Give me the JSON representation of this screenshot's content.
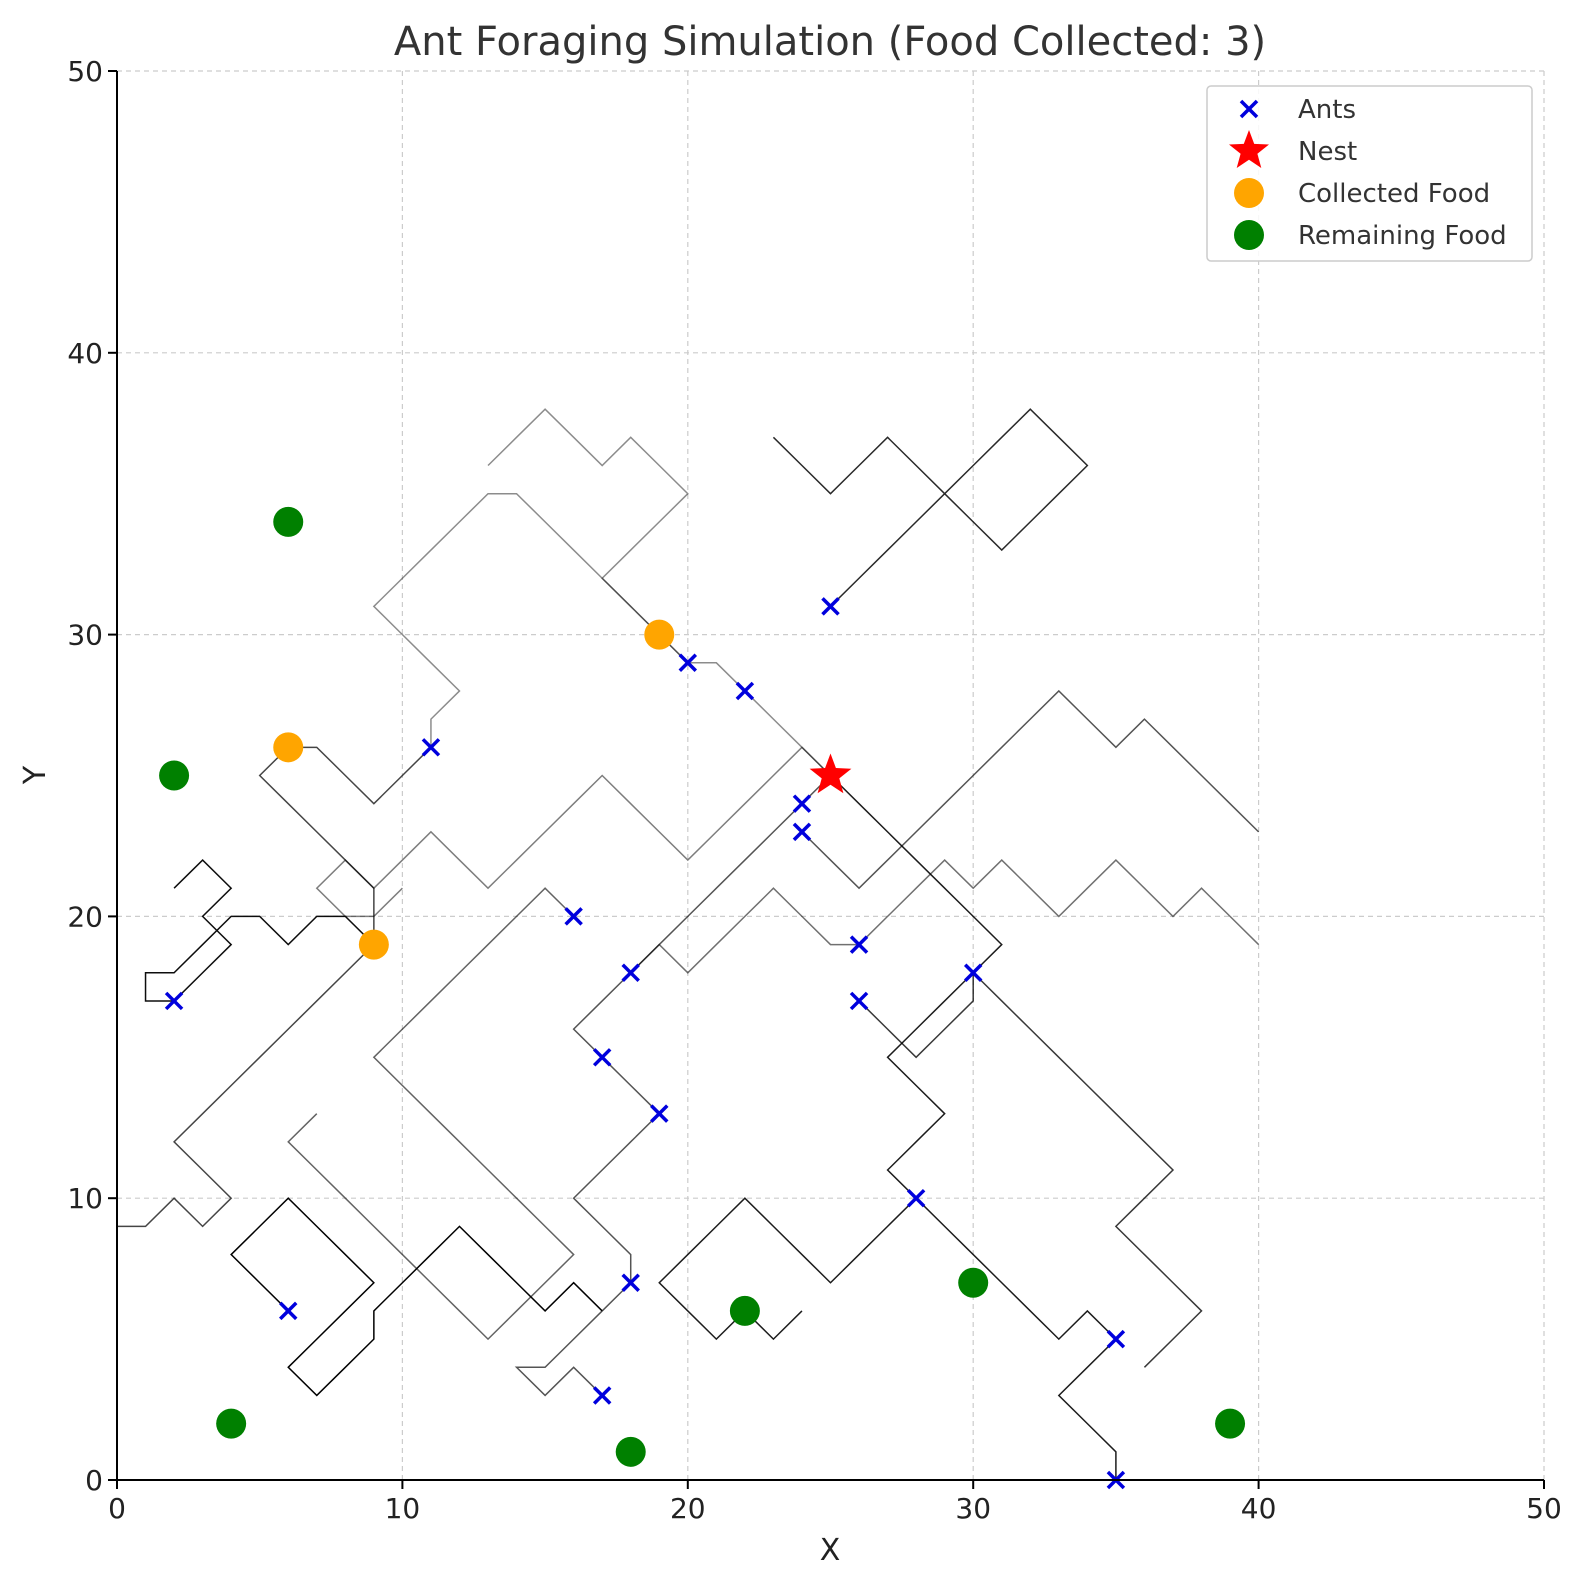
{
  "chart_data": {
    "type": "scatter",
    "title": "Ant Foraging Simulation (Food Collected: 3)",
    "xlabel": "X",
    "ylabel": "Y",
    "xlim": [
      0,
      50
    ],
    "ylim": [
      0,
      50
    ],
    "xticks": [
      "0",
      "10",
      "20",
      "30",
      "40",
      "50"
    ],
    "yticks": [
      "0",
      "10",
      "20",
      "30",
      "40",
      "50"
    ],
    "grid": true,
    "legend_position": "top-right",
    "colors": {
      "ants": "#0000dd",
      "nest": "#ff0000",
      "collected_food": "#ffa500",
      "remaining_food": "#008000",
      "trails": "#000000"
    },
    "series": [
      {
        "name": "Ants",
        "marker": "x",
        "points": [
          [
            2,
            17
          ],
          [
            6,
            6
          ],
          [
            11,
            26
          ],
          [
            16,
            20
          ],
          [
            17,
            15
          ],
          [
            17,
            3
          ],
          [
            18,
            18
          ],
          [
            18,
            7
          ],
          [
            19,
            13
          ],
          [
            20,
            29
          ],
          [
            22,
            28
          ],
          [
            24,
            24
          ],
          [
            24,
            23
          ],
          [
            25,
            31
          ],
          [
            26,
            19
          ],
          [
            26,
            17
          ],
          [
            28,
            10
          ],
          [
            30,
            18
          ],
          [
            35,
            5
          ],
          [
            35,
            0
          ]
        ]
      },
      {
        "name": "Nest",
        "marker": "star",
        "points": [
          [
            25,
            25
          ]
        ]
      },
      {
        "name": "Collected Food",
        "marker": "circle",
        "points": [
          [
            19,
            30
          ],
          [
            6,
            26
          ],
          [
            9,
            19
          ]
        ]
      },
      {
        "name": "Remaining Food",
        "marker": "circle",
        "points": [
          [
            6,
            34
          ],
          [
            2,
            25
          ],
          [
            4,
            2
          ],
          [
            18,
            1
          ],
          [
            22,
            6
          ],
          [
            30,
            7
          ],
          [
            39,
            2
          ]
        ]
      }
    ],
    "trails": [
      [
        [
          25,
          25
        ],
        [
          24,
          26
        ],
        [
          23,
          27
        ],
        [
          22,
          28
        ],
        [
          21,
          29
        ],
        [
          20,
          29
        ],
        [
          19,
          30
        ],
        [
          18,
          31
        ],
        [
          17,
          32
        ],
        [
          16,
          33
        ],
        [
          15,
          34
        ],
        [
          14,
          35
        ],
        [
          13,
          35
        ],
        [
          12,
          34
        ],
        [
          11,
          33
        ],
        [
          10,
          32
        ],
        [
          9,
          31
        ],
        [
          10,
          30
        ],
        [
          11,
          29
        ],
        [
          12,
          28
        ],
        [
          11,
          27
        ],
        [
          11,
          26
        ]
      ],
      [
        [
          25,
          25
        ],
        [
          24,
          24
        ],
        [
          23,
          23
        ],
        [
          22,
          22
        ],
        [
          21,
          21
        ],
        [
          20,
          20
        ],
        [
          19,
          19
        ],
        [
          18,
          18
        ],
        [
          17,
          17
        ],
        [
          16,
          16
        ],
        [
          17,
          15
        ],
        [
          18,
          14
        ],
        [
          19,
          13
        ],
        [
          18,
          12
        ],
        [
          17,
          11
        ],
        [
          16,
          10
        ],
        [
          17,
          9
        ],
        [
          18,
          8
        ],
        [
          18,
          7
        ],
        [
          17,
          6
        ],
        [
          16,
          5
        ],
        [
          15,
          4
        ],
        [
          14,
          4
        ],
        [
          15,
          3
        ],
        [
          16,
          4
        ],
        [
          17,
          3
        ]
      ],
      [
        [
          25,
          25
        ],
        [
          26,
          24
        ],
        [
          27,
          23
        ],
        [
          28,
          22
        ],
        [
          29,
          21
        ],
        [
          30,
          20
        ],
        [
          31,
          19
        ],
        [
          30,
          18
        ],
        [
          29,
          17
        ],
        [
          28,
          16
        ],
        [
          27,
          15
        ],
        [
          28,
          14
        ],
        [
          29,
          13
        ],
        [
          28,
          12
        ],
        [
          27,
          11
        ],
        [
          28,
          10
        ],
        [
          29,
          9
        ],
        [
          30,
          8
        ],
        [
          31,
          7
        ],
        [
          32,
          6
        ],
        [
          33,
          5
        ],
        [
          34,
          6
        ],
        [
          35,
          5
        ],
        [
          34,
          4
        ],
        [
          33,
          3
        ],
        [
          34,
          2
        ],
        [
          35,
          1
        ],
        [
          35,
          0
        ]
      ],
      [
        [
          25,
          25
        ],
        [
          24,
          26
        ],
        [
          23,
          25
        ],
        [
          22,
          24
        ],
        [
          21,
          23
        ],
        [
          20,
          22
        ],
        [
          19,
          23
        ],
        [
          18,
          24
        ],
        [
          17,
          25
        ],
        [
          16,
          24
        ],
        [
          15,
          23
        ],
        [
          14,
          22
        ],
        [
          13,
          21
        ],
        [
          12,
          22
        ],
        [
          11,
          23
        ],
        [
          10,
          22
        ],
        [
          9,
          21
        ],
        [
          8,
          22
        ],
        [
          7,
          21
        ],
        [
          8,
          20
        ],
        [
          9,
          20
        ],
        [
          10,
          21
        ]
      ],
      [
        [
          11,
          26
        ],
        [
          10,
          25
        ],
        [
          9,
          24
        ],
        [
          8,
          25
        ],
        [
          7,
          26
        ],
        [
          6,
          26
        ],
        [
          5,
          25
        ],
        [
          6,
          24
        ],
        [
          7,
          23
        ],
        [
          8,
          22
        ],
        [
          9,
          21
        ],
        [
          9,
          20
        ],
        [
          9,
          19
        ],
        [
          8,
          18
        ],
        [
          7,
          17
        ],
        [
          6,
          16
        ],
        [
          5,
          15
        ],
        [
          4,
          14
        ],
        [
          3,
          13
        ],
        [
          2,
          12
        ],
        [
          3,
          11
        ],
        [
          4,
          10
        ],
        [
          3,
          9
        ],
        [
          2,
          10
        ],
        [
          1,
          9
        ],
        [
          0,
          9
        ]
      ],
      [
        [
          9,
          19
        ],
        [
          8,
          20
        ],
        [
          7,
          20
        ],
        [
          6,
          19
        ],
        [
          5,
          20
        ],
        [
          4,
          20
        ],
        [
          3,
          19
        ],
        [
          2,
          18
        ],
        [
          1,
          18
        ],
        [
          1,
          17
        ],
        [
          2,
          17
        ],
        [
          3,
          18
        ],
        [
          4,
          19
        ],
        [
          3,
          20
        ],
        [
          4,
          21
        ],
        [
          3,
          22
        ],
        [
          2,
          21
        ]
      ],
      [
        [
          18,
          18
        ],
        [
          19,
          19
        ],
        [
          20,
          18
        ],
        [
          21,
          19
        ],
        [
          22,
          20
        ],
        [
          23,
          21
        ],
        [
          24,
          20
        ],
        [
          25,
          19
        ],
        [
          26,
          19
        ],
        [
          27,
          20
        ],
        [
          28,
          21
        ],
        [
          29,
          22
        ],
        [
          30,
          21
        ],
        [
          31,
          22
        ],
        [
          32,
          21
        ],
        [
          33,
          20
        ],
        [
          34,
          21
        ],
        [
          35,
          22
        ],
        [
          36,
          21
        ],
        [
          37,
          20
        ],
        [
          38,
          21
        ],
        [
          39,
          20
        ],
        [
          40,
          19
        ]
      ],
      [
        [
          26,
          17
        ],
        [
          27,
          16
        ],
        [
          28,
          15
        ],
        [
          29,
          16
        ],
        [
          30,
          17
        ],
        [
          30,
          18
        ],
        [
          31,
          17
        ],
        [
          32,
          16
        ],
        [
          33,
          15
        ],
        [
          34,
          14
        ],
        [
          35,
          13
        ],
        [
          36,
          12
        ],
        [
          37,
          11
        ],
        [
          36,
          10
        ],
        [
          35,
          9
        ],
        [
          36,
          8
        ],
        [
          37,
          7
        ],
        [
          38,
          6
        ],
        [
          37,
          5
        ],
        [
          36,
          4
        ]
      ],
      [
        [
          6,
          6
        ],
        [
          5,
          7
        ],
        [
          4,
          8
        ],
        [
          5,
          9
        ],
        [
          6,
          10
        ],
        [
          7,
          9
        ],
        [
          8,
          8
        ],
        [
          9,
          7
        ],
        [
          8,
          6
        ],
        [
          7,
          5
        ],
        [
          6,
          4
        ],
        [
          7,
          3
        ],
        [
          8,
          4
        ],
        [
          9,
          5
        ],
        [
          9,
          6
        ],
        [
          10,
          7
        ],
        [
          11,
          8
        ],
        [
          12,
          9
        ],
        [
          13,
          8
        ],
        [
          14,
          7
        ],
        [
          15,
          6
        ],
        [
          16,
          7
        ],
        [
          17,
          6
        ]
      ],
      [
        [
          16,
          20
        ],
        [
          15,
          21
        ],
        [
          14,
          20
        ],
        [
          13,
          19
        ],
        [
          12,
          18
        ],
        [
          11,
          17
        ],
        [
          10,
          16
        ],
        [
          9,
          15
        ],
        [
          10,
          14
        ],
        [
          11,
          13
        ],
        [
          12,
          12
        ],
        [
          13,
          11
        ],
        [
          14,
          10
        ],
        [
          15,
          9
        ],
        [
          16,
          8
        ],
        [
          15,
          7
        ],
        [
          14,
          6
        ],
        [
          13,
          5
        ],
        [
          12,
          6
        ],
        [
          11,
          7
        ],
        [
          10,
          8
        ],
        [
          9,
          9
        ],
        [
          8,
          10
        ],
        [
          7,
          11
        ],
        [
          6,
          12
        ],
        [
          7,
          13
        ]
      ],
      [
        [
          25,
          31
        ],
        [
          26,
          32
        ],
        [
          27,
          33
        ],
        [
          28,
          34
        ],
        [
          29,
          35
        ],
        [
          30,
          36
        ],
        [
          31,
          37
        ],
        [
          32,
          38
        ],
        [
          33,
          37
        ],
        [
          34,
          36
        ],
        [
          33,
          35
        ],
        [
          32,
          34
        ],
        [
          31,
          33
        ],
        [
          30,
          34
        ],
        [
          29,
          35
        ],
        [
          28,
          36
        ],
        [
          27,
          37
        ],
        [
          26,
          36
        ],
        [
          25,
          35
        ],
        [
          24,
          36
        ],
        [
          23,
          37
        ]
      ],
      [
        [
          20,
          29
        ],
        [
          19,
          30
        ],
        [
          18,
          31
        ],
        [
          17,
          32
        ],
        [
          18,
          33
        ],
        [
          19,
          34
        ],
        [
          20,
          35
        ],
        [
          19,
          36
        ],
        [
          18,
          37
        ],
        [
          17,
          36
        ],
        [
          16,
          37
        ],
        [
          15,
          38
        ],
        [
          14,
          37
        ],
        [
          13,
          36
        ]
      ],
      [
        [
          24,
          23
        ],
        [
          25,
          22
        ],
        [
          26,
          21
        ],
        [
          27,
          22
        ],
        [
          28,
          23
        ],
        [
          29,
          24
        ],
        [
          30,
          25
        ],
        [
          31,
          26
        ],
        [
          32,
          27
        ],
        [
          33,
          28
        ],
        [
          34,
          27
        ],
        [
          35,
          26
        ],
        [
          36,
          27
        ],
        [
          37,
          26
        ],
        [
          38,
          25
        ],
        [
          39,
          24
        ],
        [
          40,
          23
        ]
      ],
      [
        [
          28,
          10
        ],
        [
          27,
          9
        ],
        [
          26,
          8
        ],
        [
          25,
          7
        ],
        [
          24,
          8
        ],
        [
          23,
          9
        ],
        [
          22,
          10
        ],
        [
          21,
          9
        ],
        [
          20,
          8
        ],
        [
          19,
          7
        ],
        [
          20,
          6
        ],
        [
          21,
          5
        ],
        [
          22,
          6
        ],
        [
          23,
          5
        ],
        [
          24,
          6
        ]
      ]
    ]
  },
  "legend": [
    {
      "key": "ants",
      "label": "Ants"
    },
    {
      "key": "nest",
      "label": "Nest"
    },
    {
      "key": "collected_food",
      "label": "Collected Food"
    },
    {
      "key": "remaining_food",
      "label": "Remaining Food"
    }
  ]
}
